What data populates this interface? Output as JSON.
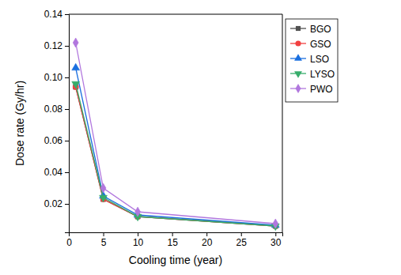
{
  "chart_data": {
    "type": "line",
    "x_label": "Cooling time (year)",
    "y_label": "Dose rate (Gy/hr)",
    "x": [
      1,
      5,
      10,
      30
    ],
    "xlim": [
      0,
      31
    ],
    "xticks": [
      0,
      5,
      10,
      15,
      20,
      25,
      30
    ],
    "ylim": [
      0.002,
      0.14
    ],
    "yticks": [
      0.02,
      0.04,
      0.06,
      0.08,
      {
        "value": 0.1,
        "label": "0.10"
      },
      0.12,
      0.14
    ],
    "legend": "top-right",
    "grid": false,
    "series": [
      {
        "name": "BGO",
        "color": "#515151",
        "marker": "square",
        "values": [
          0.094,
          0.023,
          0.012,
          0.006
        ]
      },
      {
        "name": "GSO",
        "color": "#f14040",
        "marker": "circle",
        "values": [
          0.094,
          0.023,
          0.012,
          0.006
        ]
      },
      {
        "name": "LSO",
        "color": "#1a6fdf",
        "marker": "triangle-up",
        "values": [
          0.106,
          0.025,
          0.013,
          0.0065
        ]
      },
      {
        "name": "LYSO",
        "color": "#37ad6b",
        "marker": "triangle-down",
        "values": [
          0.096,
          0.024,
          0.012,
          0.006
        ]
      },
      {
        "name": "PWO",
        "color": "#b177de",
        "marker": "diamond",
        "values": [
          0.122,
          0.03,
          0.015,
          0.0075
        ]
      }
    ]
  }
}
